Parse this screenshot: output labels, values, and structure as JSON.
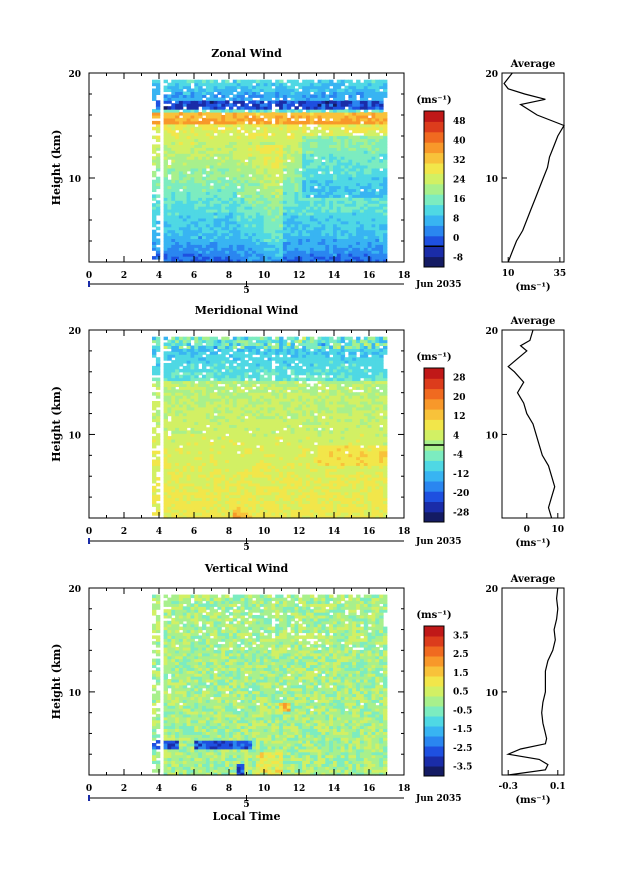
{
  "chart_data": [
    {
      "type": "heatmap",
      "title": "Zonal Wind",
      "ylabel": "Height (km)",
      "xlim": [
        0,
        18
      ],
      "ylim": [
        2,
        20
      ],
      "x_ticks": [
        "0",
        "2",
        "4",
        "6",
        "8",
        "10",
        "12",
        "14",
        "16",
        "18"
      ],
      "y_ticks": [
        "10",
        "20"
      ],
      "date_axis": {
        "ticks": [
          "4",
          "5"
        ],
        "label": "Jun 2035"
      },
      "colorbar": {
        "unit": "(ms⁻¹)",
        "ticks": [
          "48",
          "40",
          "32",
          "24",
          "16",
          "8",
          "0",
          "-8"
        ],
        "range": [
          -8,
          52
        ],
        "zero_contour": 0,
        "colors": [
          "#141b63",
          "#1a2ca8",
          "#1e50e0",
          "#2a86f0",
          "#38b4f2",
          "#4fd8e4",
          "#7cecc0",
          "#a8f08c",
          "#d2f064",
          "#f2e64a",
          "#f8c23a",
          "#f8982a",
          "#f06a20",
          "#dc3c1c",
          "#c01818"
        ]
      },
      "data_coverage": {
        "x_start": 3.6,
        "x_end": 17.0,
        "y_start": 2.0,
        "y_end": 19.2
      },
      "average_profile": {
        "title": "Average",
        "xlabel": "(ms⁻¹)",
        "x_ticks": [
          "10",
          "35"
        ],
        "xlim": [
          7,
          37
        ],
        "height": [
          2,
          3,
          4,
          5,
          6,
          7,
          8,
          9,
          10,
          11,
          12,
          13,
          14,
          15,
          16,
          17,
          17.5,
          18,
          18.5,
          19,
          19.5,
          20
        ],
        "value": [
          10,
          12,
          14,
          17,
          19,
          21,
          23,
          25,
          27,
          29,
          30,
          32,
          34,
          37,
          24,
          16,
          28,
          18,
          10,
          8,
          10,
          12
        ]
      }
    },
    {
      "type": "heatmap",
      "title": "Meridional Wind",
      "ylabel": "Height (km)",
      "xlim": [
        0,
        18
      ],
      "ylim": [
        2,
        20
      ],
      "x_ticks": [
        "0",
        "2",
        "4",
        "6",
        "8",
        "10",
        "12",
        "14",
        "16",
        "18"
      ],
      "y_ticks": [
        "10",
        "20"
      ],
      "date_axis": {
        "ticks": [
          "4",
          "5"
        ],
        "label": "Jun 2035"
      },
      "colorbar": {
        "unit": "(ms⁻¹)",
        "ticks": [
          "28",
          "20",
          "12",
          "4",
          "-4",
          "-12",
          "-20",
          "-28"
        ],
        "range": [
          -32,
          32
        ],
        "zero_contour": 0,
        "colors": [
          "#141b63",
          "#1a2ca8",
          "#1e50e0",
          "#2a86f0",
          "#38b4f2",
          "#4fd8e4",
          "#7cecc0",
          "#a8f08c",
          "#d2f064",
          "#f2e64a",
          "#f8c23a",
          "#f8982a",
          "#f06a20",
          "#dc3c1c",
          "#c01818"
        ]
      },
      "data_coverage": {
        "x_start": 3.6,
        "x_end": 17.0,
        "y_start": 2.0,
        "y_end": 19.2
      },
      "average_profile": {
        "title": "Average",
        "xlabel": "(ms⁻¹)",
        "x_ticks": [
          "0",
          "10"
        ],
        "xlim": [
          -8,
          12
        ],
        "height": [
          2,
          3,
          4,
          5,
          6,
          7,
          8,
          9,
          10,
          11,
          12,
          13,
          14,
          15,
          16,
          16.5,
          17,
          18,
          18.5,
          19,
          20
        ],
        "value": [
          8,
          7,
          8,
          9,
          8,
          7,
          5,
          4,
          3,
          2,
          0,
          -1,
          -3,
          -1,
          -4,
          -6,
          -4,
          0,
          -2,
          1,
          2
        ]
      }
    },
    {
      "type": "heatmap",
      "title": "Vertical Wind",
      "ylabel": "Height (km)",
      "xlabel": "Local Time",
      "xlim": [
        0,
        18
      ],
      "ylim": [
        2,
        20
      ],
      "x_ticks": [
        "0",
        "2",
        "4",
        "6",
        "8",
        "10",
        "12",
        "14",
        "16",
        "18"
      ],
      "y_ticks": [
        "10",
        "20"
      ],
      "date_axis": {
        "ticks": [
          "4",
          "5"
        ],
        "label": "Jun 2035"
      },
      "colorbar": {
        "unit": "(ms⁻¹)",
        "ticks": [
          "3.5",
          "2.5",
          "1.5",
          "0.5",
          "-0.5",
          "-1.5",
          "-2.5",
          "-3.5"
        ],
        "range": [
          -4,
          4
        ],
        "colors": [
          "#141b63",
          "#1a2ca8",
          "#1e50e0",
          "#2a86f0",
          "#38b4f2",
          "#4fd8e4",
          "#7cecc0",
          "#a8f08c",
          "#d2f064",
          "#f2e64a",
          "#f8c23a",
          "#f8982a",
          "#f06a20",
          "#dc3c1c",
          "#c01818"
        ]
      },
      "data_coverage": {
        "x_start": 3.6,
        "x_end": 17.0,
        "y_start": 2.0,
        "y_end": 19.2
      },
      "average_profile": {
        "title": "Average",
        "xlabel": "(ms⁻¹)",
        "x_ticks": [
          "-0.3",
          "0.1"
        ],
        "xlim": [
          -0.35,
          0.15
        ],
        "height": [
          2,
          2.5,
          3,
          3.5,
          4,
          4.5,
          5,
          5.5,
          6,
          7,
          8,
          9,
          10,
          11,
          12,
          13,
          14,
          15,
          16,
          17,
          18,
          19,
          20
        ],
        "value": [
          -0.3,
          0.0,
          0.02,
          -0.05,
          -0.3,
          -0.2,
          0.0,
          0.01,
          0.0,
          -0.02,
          -0.03,
          -0.02,
          0.0,
          0.0,
          0.0,
          0.02,
          0.06,
          0.08,
          0.07,
          0.09,
          0.1,
          0.09,
          0.1
        ]
      }
    }
  ]
}
